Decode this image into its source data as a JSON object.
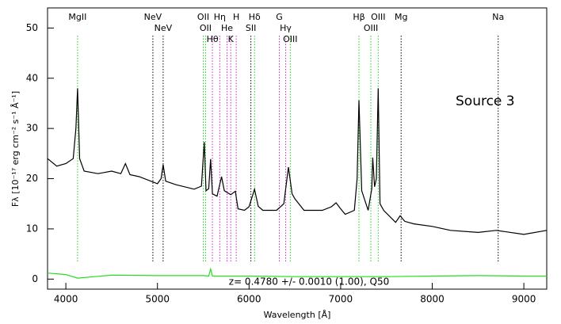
{
  "chart_data": {
    "type": "line",
    "xlabel": "Wavelength [Å]",
    "ylabel": "Fλ [10⁻¹⁷ erg cm⁻² s⁻¹ Å⁻¹]",
    "annotations": [
      "Source 3",
      "z= 0.4780 +/- 0.0010 (1.00), Q50"
    ],
    "xlim": [
      3800,
      9250
    ],
    "ylim": [
      -2,
      54
    ],
    "xticks": [
      4000,
      5000,
      6000,
      7000,
      8000,
      9000
    ],
    "yticks": [
      0,
      10,
      20,
      30,
      40,
      50
    ],
    "series": [
      {
        "color": "#000000",
        "x": [
          3800,
          3900,
          4000,
          4080,
          4110,
          4128,
          4150,
          4200,
          4350,
          4500,
          4600,
          4650,
          4700,
          4800,
          5000,
          5040,
          5062,
          5090,
          5200,
          5400,
          5480,
          5511,
          5530,
          5560,
          5580,
          5600,
          5650,
          5700,
          5730,
          5800,
          5850,
          5880,
          5950,
          6000,
          6060,
          6100,
          6150,
          6300,
          6380,
          6430,
          6470,
          6500,
          6600,
          6800,
          6900,
          6950,
          7000,
          7050,
          7150,
          7180,
          7200,
          7230,
          7300,
          7340,
          7350,
          7370,
          7390,
          7410,
          7430,
          7470,
          7600,
          7650,
          7700,
          7800,
          8000,
          8200,
          8500,
          8700,
          9000,
          9250
        ],
        "values": [
          24,
          22.5,
          23,
          24,
          30,
          38,
          24,
          21.5,
          21,
          21.5,
          21,
          23,
          20.8,
          20.4,
          19,
          20,
          22.8,
          19.5,
          18.8,
          17.9,
          18.5,
          27.3,
          17.6,
          18,
          23.9,
          17,
          16.5,
          20.4,
          17.6,
          16.8,
          17.5,
          14,
          13.7,
          14.4,
          17.9,
          14.5,
          13.7,
          13.7,
          15,
          22.3,
          17,
          16,
          13.7,
          13.7,
          14.4,
          15.2,
          14,
          12.9,
          13.7,
          20,
          35.6,
          17.6,
          13.7,
          18,
          24.2,
          18.4,
          20,
          38,
          15,
          13.7,
          11.3,
          12.6,
          11.5,
          11,
          10.5,
          9.7,
          9.3,
          9.7,
          8.9,
          9.7
        ]
      },
      {
        "color": "#22dd22",
        "x": [
          3800,
          4000,
          4128,
          4500,
          5000,
          5500,
          5560,
          5580,
          5600,
          6000,
          6500,
          7000,
          7500,
          8000,
          8500,
          9000,
          9250
        ],
        "values": [
          1.2,
          0.9,
          0.2,
          0.8,
          0.7,
          0.7,
          0.6,
          2,
          0.6,
          0.6,
          0.5,
          0.5,
          0.5,
          0.6,
          0.7,
          0.6,
          0.6
        ]
      }
    ],
    "lines": [
      {
        "x": 4128,
        "label": "MgII",
        "color": "#22cc22"
      },
      {
        "x": 4950,
        "label": "NeV",
        "color": "#000000"
      },
      {
        "x": 5062,
        "label": "NeV",
        "color": "#000000"
      },
      {
        "x": 5500,
        "label": "OII",
        "color": "#22cc22"
      },
      {
        "x": 5525,
        "label": "OII",
        "color": "#22cc22"
      },
      {
        "x": 5600,
        "label": "Hθ",
        "color": "#cc22cc"
      },
      {
        "x": 5680,
        "label": "Hη",
        "color": "#cc22cc"
      },
      {
        "x": 5760,
        "label": "He",
        "color": "#cc22cc"
      },
      {
        "x": 5800,
        "label": "K",
        "color": "#cc22cc"
      },
      {
        "x": 5860,
        "label": "H",
        "color": "#cc22cc"
      },
      {
        "x": 6020,
        "label": "SII",
        "color": "#000000"
      },
      {
        "x": 6060,
        "label": "Hδ",
        "color": "#22cc22"
      },
      {
        "x": 6330,
        "label": "G",
        "color": "#cc22cc"
      },
      {
        "x": 6400,
        "label": "Hγ",
        "color": "#cc22cc"
      },
      {
        "x": 6450,
        "label": "OIII",
        "color": "#22cc22"
      },
      {
        "x": 7200,
        "label": "Hβ",
        "color": "#22cc22"
      },
      {
        "x": 7330,
        "label": "OIII",
        "color": "#22cc22"
      },
      {
        "x": 7410,
        "label": "OIII",
        "color": "#22cc22"
      },
      {
        "x": 7660,
        "label": "Mg",
        "color": "#000000"
      },
      {
        "x": 8720,
        "label": "Na",
        "color": "#000000"
      }
    ]
  }
}
